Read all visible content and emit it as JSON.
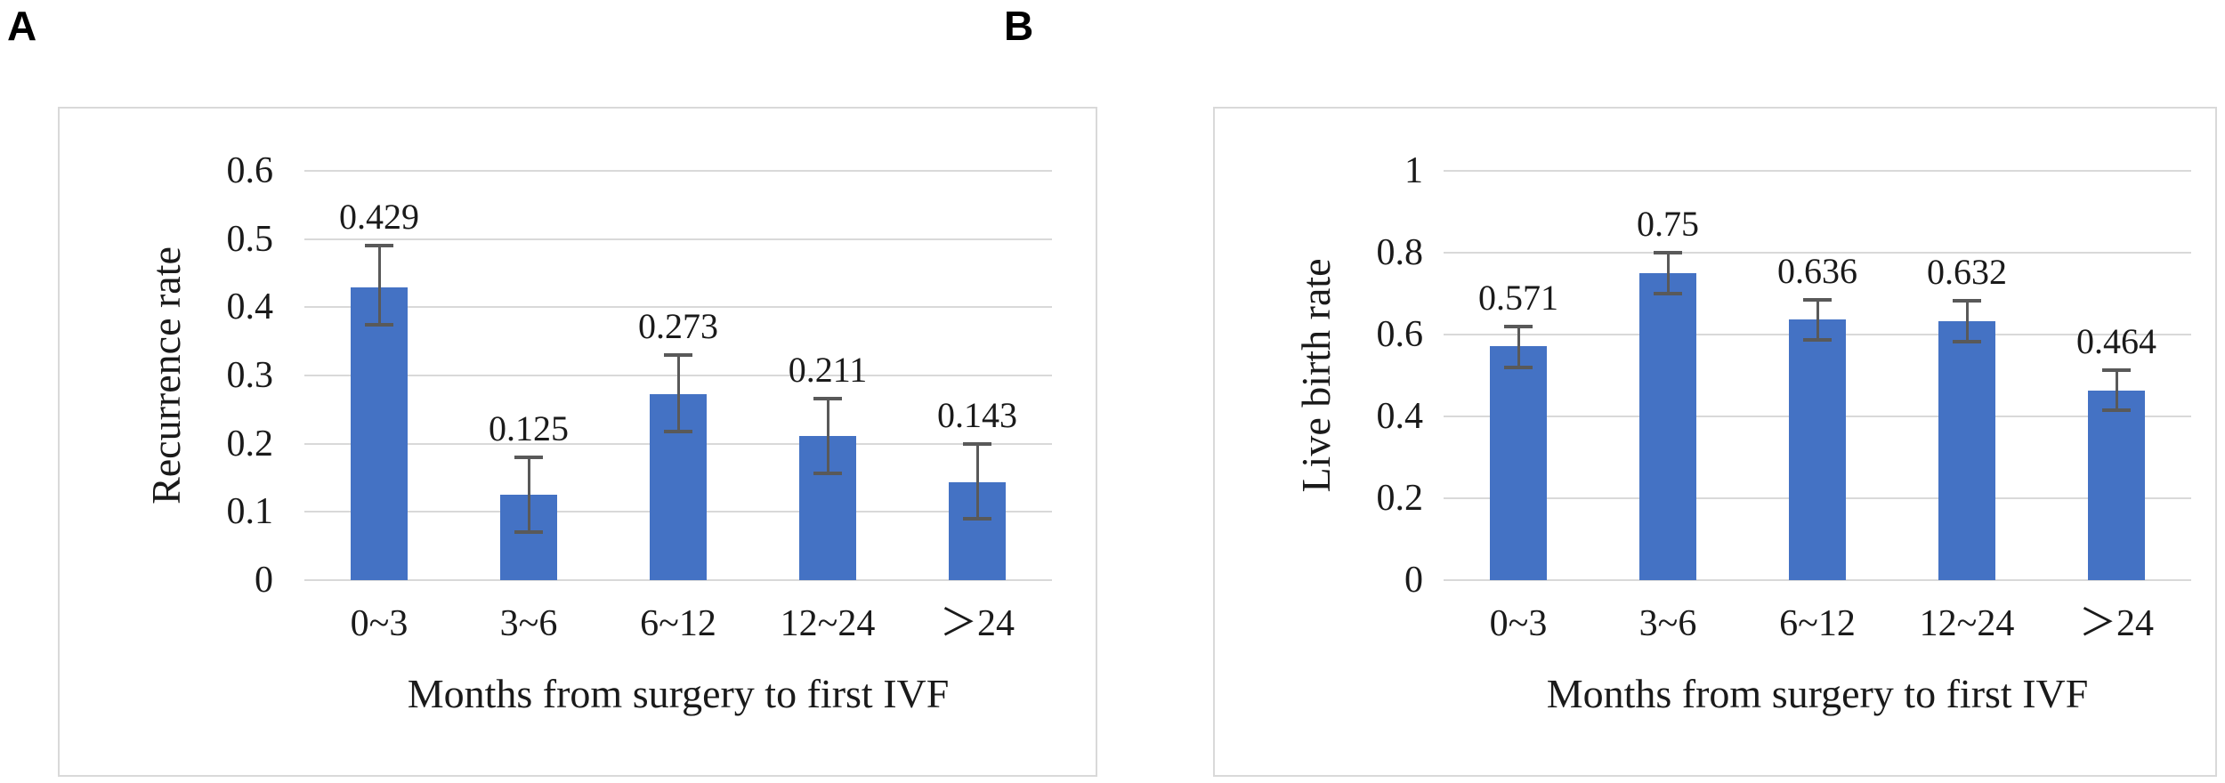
{
  "figure": {
    "panels": [
      {
        "label": "A"
      },
      {
        "label": "B"
      }
    ]
  },
  "chart_data": [
    {
      "type": "bar",
      "panel": "A",
      "categories": [
        "0~3",
        "3~6",
        "6~12",
        "12~24",
        "＞24"
      ],
      "values": [
        0.429,
        0.125,
        0.273,
        0.211,
        0.143
      ],
      "data_labels": [
        "0.429",
        "0.125",
        "0.273",
        "0.211",
        "0.143"
      ],
      "error_bars": {
        "upper": [
          0.49,
          0.18,
          0.33,
          0.266,
          0.2
        ],
        "lower": [
          0.375,
          0.07,
          0.218,
          0.156,
          0.09
        ]
      },
      "xlabel": "Months from surgery to first IVF",
      "ylabel": "Recurrence rate",
      "ylim": [
        0,
        0.6
      ],
      "yticks": [
        {
          "value": 0,
          "label": "0"
        },
        {
          "value": 0.1,
          "label": "0.1"
        },
        {
          "value": 0.2,
          "label": "0.2"
        },
        {
          "value": 0.3,
          "label": "0.3"
        },
        {
          "value": 0.4,
          "label": "0.4"
        },
        {
          "value": 0.5,
          "label": "0.5"
        },
        {
          "value": 0.6,
          "label": "0.6"
        }
      ],
      "grid": true,
      "legend_position": "none",
      "bar_color": "#4472C4",
      "error_color": "#595959",
      "grid_color": "#D9D9D9",
      "border_color": "#D9D9D9",
      "text_color": "#1A1A1A"
    },
    {
      "type": "bar",
      "panel": "B",
      "categories": [
        "0~3",
        "3~6",
        "6~12",
        "12~24",
        "＞24"
      ],
      "values": [
        0.571,
        0.75,
        0.636,
        0.632,
        0.464
      ],
      "data_labels": [
        "0.571",
        "0.75",
        "0.636",
        "0.632",
        "0.464"
      ],
      "error_bars": {
        "upper": [
          0.62,
          0.8,
          0.684,
          0.682,
          0.512
        ],
        "lower": [
          0.52,
          0.7,
          0.588,
          0.582,
          0.416
        ]
      },
      "xlabel": "Months from surgery to first IVF",
      "ylabel": "Live birth rate",
      "ylim": [
        0,
        1
      ],
      "yticks": [
        {
          "value": 0,
          "label": "0"
        },
        {
          "value": 0.2,
          "label": "0.2"
        },
        {
          "value": 0.4,
          "label": "0.4"
        },
        {
          "value": 0.6,
          "label": "0.6"
        },
        {
          "value": 0.8,
          "label": "0.8"
        },
        {
          "value": 1,
          "label": "1"
        }
      ],
      "grid": true,
      "legend_position": "none",
      "bar_color": "#4472C4",
      "error_color": "#595959",
      "grid_color": "#D9D9D9",
      "border_color": "#D9D9D9",
      "text_color": "#1A1A1A"
    }
  ]
}
